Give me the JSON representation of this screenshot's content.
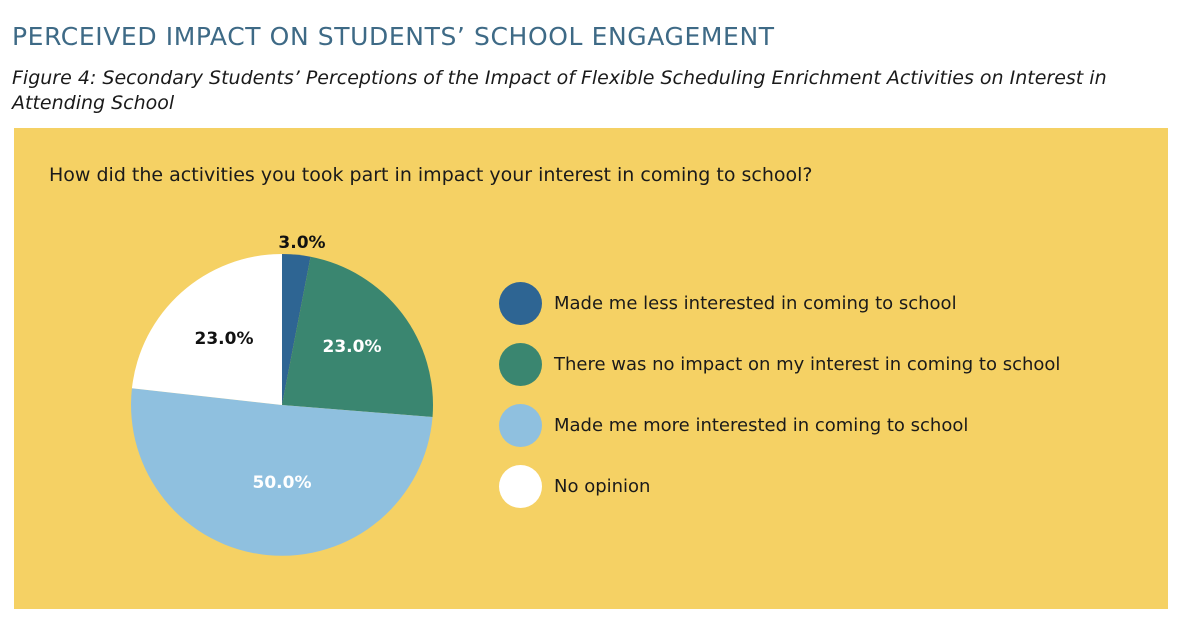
{
  "section_heading": "PERCEIVED IMPACT ON STUDENTS’ SCHOOL ENGAGEMENT",
  "figure_caption": "Figure 4: Secondary Students’ Perceptions of the Impact of Flexible Scheduling Enrichment Activities on Interest in Attending School",
  "question": "How did the activities you took part in impact your interest in coming to school?",
  "colors": {
    "panel_background": "#f5d164",
    "heading": "#3e6a86"
  },
  "chart_data": {
    "type": "pie",
    "title": "",
    "legend_position": "right",
    "slices": [
      {
        "label": "Made me less interested in coming to school",
        "value": 3.0,
        "display": "3.0%",
        "color": "#2e6593",
        "label_color": "#111111"
      },
      {
        "label": "There was no impact on my interest in coming to school",
        "value": 23.0,
        "display": "23.0%",
        "color": "#3a8670",
        "label_color": "#ffffff"
      },
      {
        "label": "Made me more interested in coming to school",
        "value": 50.0,
        "display": "50.0%",
        "color": "#8fc0df",
        "label_color": "#ffffff"
      },
      {
        "label": "No opinion",
        "value": 23.0,
        "display": "23.0%",
        "color": "#ffffff",
        "label_color": "#111111"
      }
    ]
  }
}
